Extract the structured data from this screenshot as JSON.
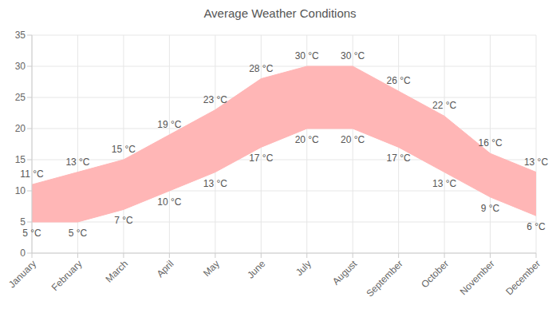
{
  "chart_data": {
    "type": "area_range",
    "title": "Average Weather Conditions",
    "categories": [
      "January",
      "February",
      "March",
      "April",
      "May",
      "June",
      "July",
      "August",
      "September",
      "October",
      "November",
      "December"
    ],
    "series": [
      {
        "values": [
          5,
          5,
          7,
          10,
          13,
          17,
          20,
          20,
          17,
          13,
          9,
          6
        ],
        "value_labels": [
          "5 °C",
          "5 °C",
          "7 °C",
          "10 °C",
          "13 °C",
          "17 °C",
          "20 °C",
          "20 °C",
          "17 °C",
          "13 °C",
          "9 °C",
          "6 °C"
        ]
      },
      {
        "values": [
          11,
          13,
          15,
          19,
          23,
          28,
          30,
          30,
          26,
          22,
          16,
          13
        ],
        "value_labels": [
          "11 °C",
          "13 °C",
          "15 °C",
          "19 °C",
          "23 °C",
          "28 °C",
          "30 °C",
          "30 °C",
          "26 °C",
          "22 °C",
          "16 °C",
          "13 °C"
        ]
      }
    ],
    "color": "#ffb6b6",
    "ylim": [
      0,
      35
    ],
    "yticks": [
      0,
      5,
      10,
      15,
      20,
      25,
      30,
      35
    ],
    "grid": true,
    "data_labels": true
  }
}
